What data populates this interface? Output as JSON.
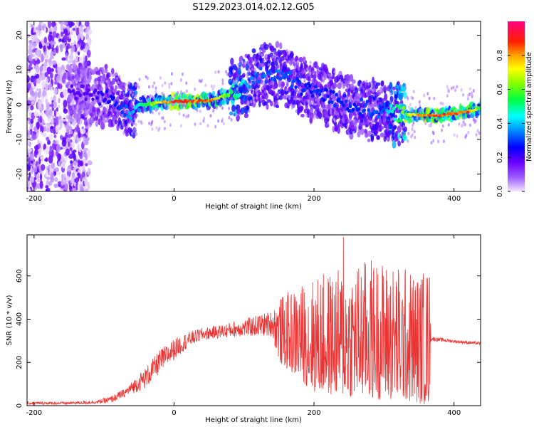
{
  "title": "S129.2023.014.02.12.G05",
  "chart_data": [
    {
      "type": "heatmap",
      "xlabel": "Height of straight line (km)",
      "ylabel": "Frequency (Hz)",
      "xlim": [
        -210,
        438
      ],
      "ylim": [
        -25,
        24
      ],
      "xticks": [
        -200,
        0,
        200,
        400
      ],
      "yticks": [
        -20,
        -10,
        0,
        10,
        20
      ],
      "colorbar": {
        "label": "Normalized spectral amplitude",
        "range": [
          0,
          1
        ],
        "ticks": [
          0.0,
          0.2,
          0.4,
          0.6,
          0.8
        ],
        "tick_labels": [
          "0.0",
          "0.2",
          "0.4",
          "0.6",
          "0.8"
        ],
        "colormap": [
          "#f0e0ff",
          "#7000ff",
          "#0000ff",
          "#00ffff",
          "#00ff00",
          "#ffff00",
          "#ff8000",
          "#ff0000",
          "#ff0080"
        ]
      },
      "ridge": {
        "x": [
          -150,
          -120,
          -100,
          -80,
          -70,
          -60,
          -50,
          0,
          50,
          80,
          100,
          120,
          140,
          160,
          180,
          200,
          250,
          300,
          340,
          380,
          420,
          438
        ],
        "center_hz": [
          4,
          3,
          2,
          1,
          -1,
          -2,
          0,
          1,
          1,
          3,
          5,
          8,
          9,
          8,
          5,
          4,
          0,
          -2,
          -3,
          -3,
          -2,
          -1
        ],
        "peak_amplitude": [
          0.2,
          0.2,
          0.25,
          0.3,
          0.35,
          0.4,
          0.5,
          0.95,
          0.9,
          0.6,
          0.45,
          0.35,
          0.35,
          0.35,
          0.3,
          0.3,
          0.3,
          0.35,
          0.8,
          0.95,
          0.9,
          0.6
        ]
      },
      "noise_region_x": [
        -210,
        -120
      ]
    },
    {
      "type": "line",
      "xlabel": "Height of straight line (km)",
      "ylabel": "SNR (10 * v/v)",
      "xlim": [
        -210,
        438
      ],
      "ylim": [
        0,
        790
      ],
      "xticks": [
        -200,
        0,
        200,
        400
      ],
      "yticks": [
        0,
        200,
        400,
        600
      ],
      "color": "#ee3333",
      "envelope": {
        "x": [
          -210,
          -150,
          -110,
          -90,
          -70,
          -40,
          -20,
          0,
          20,
          40,
          60,
          100,
          140,
          150,
          180,
          200,
          240,
          280,
          320,
          350,
          365,
          367,
          400,
          438
        ],
        "lower": [
          5,
          5,
          8,
          12,
          40,
          80,
          150,
          210,
          270,
          300,
          310,
          320,
          320,
          200,
          120,
          60,
          40,
          30,
          20,
          10,
          0,
          300,
          290,
          280
        ],
        "upper": [
          18,
          18,
          25,
          45,
          80,
          180,
          260,
          310,
          340,
          360,
          370,
          400,
          440,
          500,
          560,
          600,
          640,
          690,
          660,
          620,
          650,
          320,
          305,
          295
        ]
      },
      "peak": {
        "x": 242,
        "y": 780
      }
    }
  ]
}
